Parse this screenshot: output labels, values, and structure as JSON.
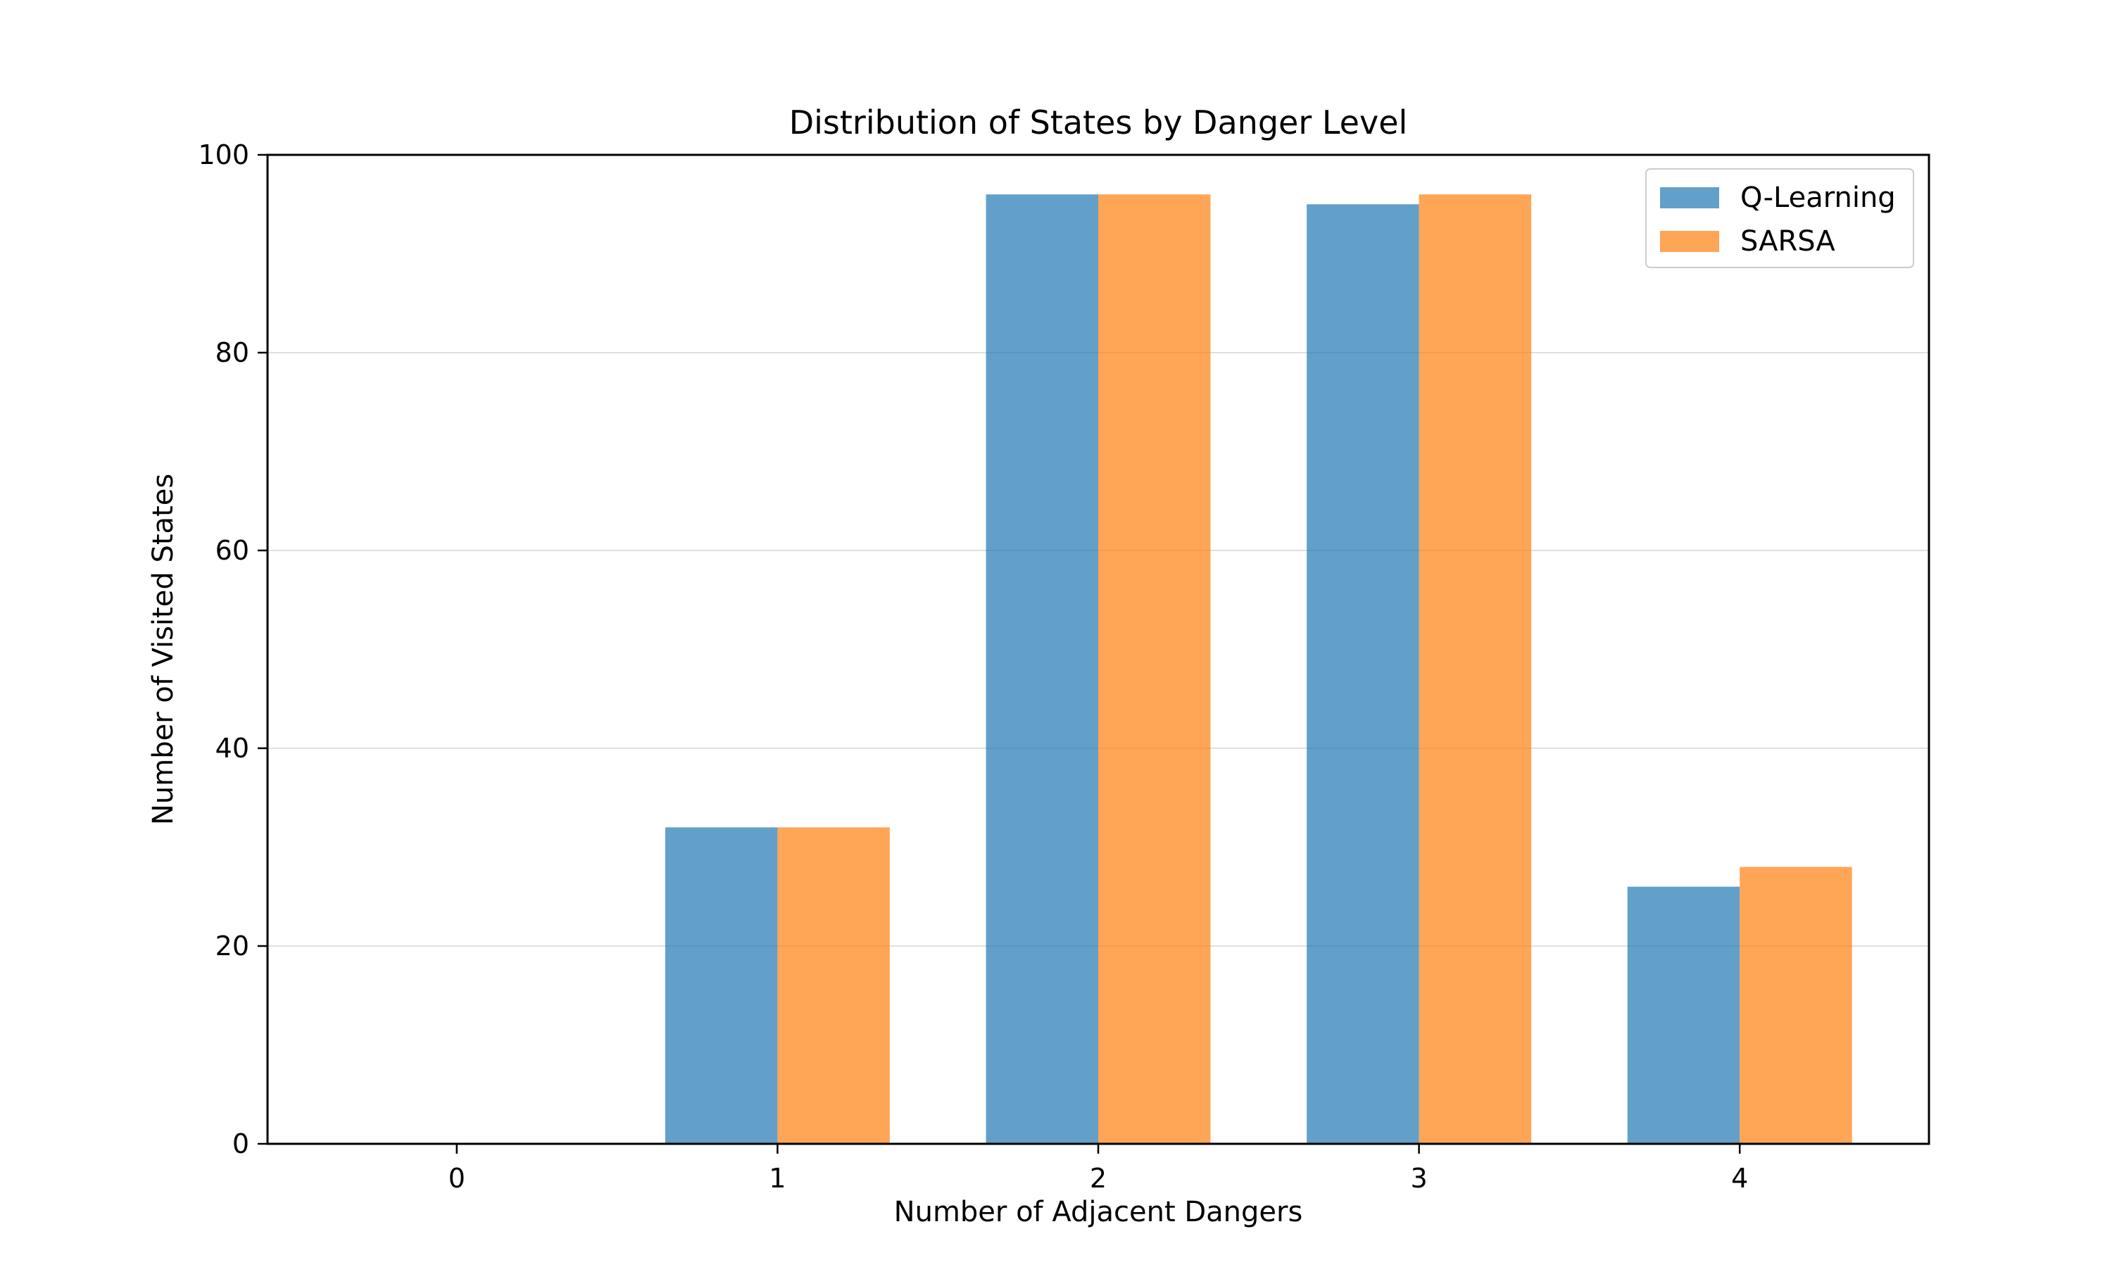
{
  "chart_data": {
    "type": "bar",
    "title": "Distribution of States by Danger Level",
    "xlabel": "Number of Adjacent Dangers",
    "ylabel": "Number of Visited States",
    "categories": [
      "0",
      "1",
      "2",
      "3",
      "4"
    ],
    "series": [
      {
        "name": "Q-Learning",
        "color": "#1f77b4",
        "values": [
          0,
          32,
          96,
          95,
          26
        ]
      },
      {
        "name": "SARSA",
        "color": "#ff7f0e",
        "values": [
          0,
          32,
          96,
          96,
          28
        ]
      }
    ],
    "ylim": [
      0,
      100
    ],
    "yticks": [
      0,
      20,
      40,
      60,
      80,
      100
    ],
    "grid": "y",
    "legend_position": "top-right"
  }
}
